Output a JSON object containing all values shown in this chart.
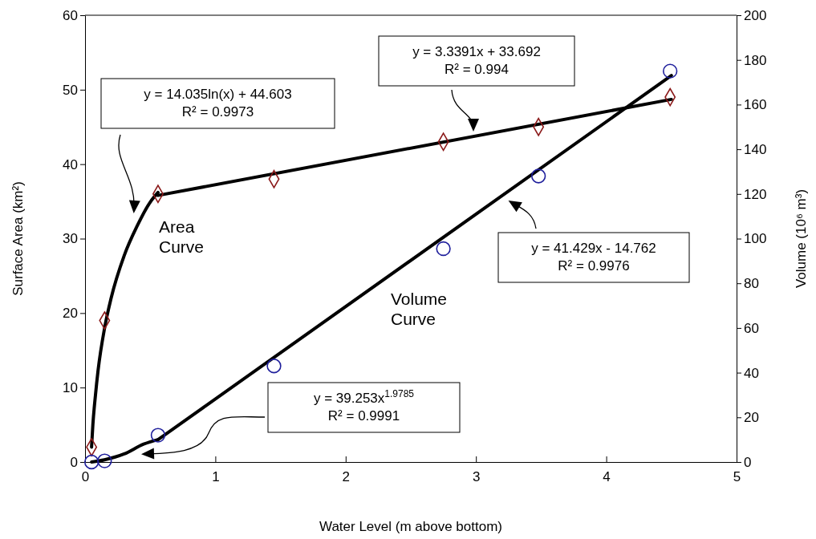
{
  "chart_data": {
    "type": "scatter",
    "xlabel": "Water Level (m above bottom)",
    "ylabel": "Surface Area (km²)",
    "y2label": "Volume (10⁶ m³)",
    "xlim": [
      0,
      5
    ],
    "xticks": [
      0,
      1,
      2,
      3,
      4,
      5
    ],
    "ylim": [
      0,
      60
    ],
    "yticks": [
      0,
      10,
      20,
      30,
      40,
      50,
      60
    ],
    "y2lim": [
      0,
      200
    ],
    "y2ticks": [
      0,
      20,
      40,
      60,
      80,
      100,
      120,
      140,
      160,
      180,
      200
    ],
    "series": [
      {
        "type": "line",
        "color": "#000000",
        "marker": "none",
        "x": [
          0.05,
          0.06,
          0.08,
          0.1,
          0.15,
          0.2,
          0.3,
          0.4,
          0.5,
          0.56
        ],
        "values": [
          2,
          5,
          9,
          12.3,
          18,
          22,
          27.7,
          31.7,
          34.9,
          36.2
        ]
      },
      {
        "type": "line",
        "color": "#000000",
        "marker": "none",
        "x": [
          0.56,
          4.5
        ],
        "values": [
          35.8,
          48.7
        ]
      },
      {
        "type": "line",
        "color": "#000000",
        "marker": "none",
        "axis": "y2",
        "x": [
          0.05,
          0.15,
          0.3,
          0.45,
          0.56
        ],
        "values": [
          0,
          1,
          3.6,
          8,
          10
        ]
      },
      {
        "type": "line",
        "color": "#000000",
        "marker": "none",
        "axis": "y2",
        "x": [
          0.56,
          4.5
        ],
        "values": [
          10,
          173
        ]
      },
      {
        "color": "#8b1a1a",
        "marker": "diamond",
        "x": [
          0.05,
          0.15,
          0.56,
          1.45,
          2.75,
          3.48,
          4.49
        ],
        "values": [
          2,
          19,
          36,
          38,
          43,
          45,
          49
        ]
      },
      {
        "color": "#1f1f9c",
        "marker": "circle",
        "axis": "y2",
        "x": [
          0.05,
          0.15,
          0.56,
          1.45,
          2.75,
          3.48,
          4.49
        ],
        "values": [
          0,
          0.5,
          12,
          43,
          95.5,
          128,
          175
        ]
      }
    ],
    "annotations": [
      "y = 14.035ln(x) + 44.603\nR² = 0.9973",
      "y = 3.3391x + 33.692\nR² = 0.994",
      "y = 41.429x - 14.762\nR² = 0.9976",
      "y = 39.253x$^{1.9785}$\nR² = 0.9991",
      "Area\nCurve",
      "Volume\nCurve"
    ]
  }
}
